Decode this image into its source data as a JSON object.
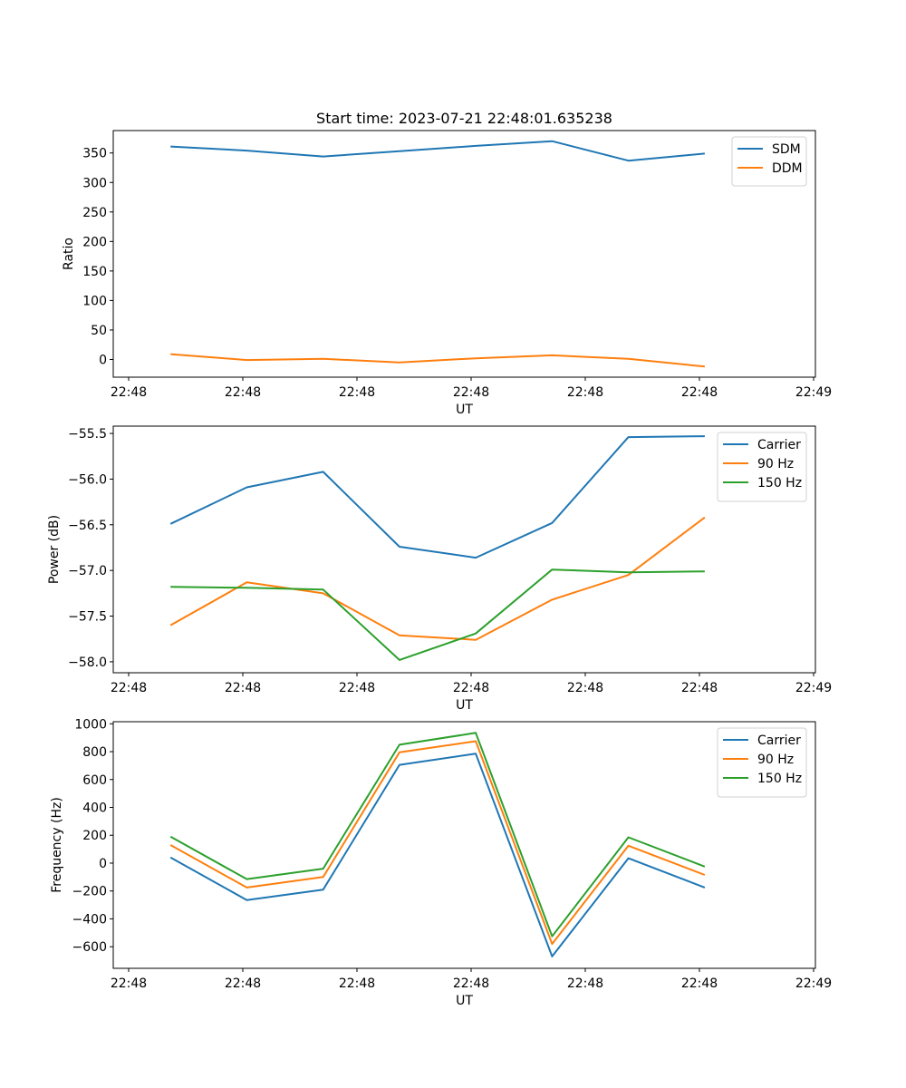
{
  "chart_data": [
    {
      "type": "line",
      "title": "Start time: 2023-07-21 22:48:01.635238",
      "xlabel": "UT",
      "ylabel": "Ratio",
      "x_ticks": [
        "22:48",
        "22:48",
        "22:48",
        "22:48",
        "22:48",
        "22:48",
        "22:48"
      ],
      "x_tick_last": "22:49",
      "yticks": [
        0,
        50,
        100,
        150,
        200,
        250,
        300,
        350
      ],
      "yticklabels": [
        "0",
        "50",
        "100",
        "150",
        "200",
        "250",
        "300",
        "350"
      ],
      "ylim": [
        -30,
        388
      ],
      "x": [
        0,
        1,
        2,
        3,
        4,
        5,
        6,
        7
      ],
      "xlim": [
        -0.75,
        8.45
      ],
      "legend": "upper right",
      "series": [
        {
          "name": "SDM",
          "color": "#1f77b4",
          "values": [
            361,
            354,
            344,
            353,
            362,
            370,
            337,
            349
          ]
        },
        {
          "name": "DDM",
          "color": "#ff7f0e",
          "values": [
            9,
            -1,
            1,
            -5,
            2,
            7,
            1,
            -12
          ]
        }
      ]
    },
    {
      "type": "line",
      "title": "",
      "xlabel": "UT",
      "ylabel": "Power (dB)",
      "x_ticks": [
        "22:48",
        "22:48",
        "22:48",
        "22:48",
        "22:48",
        "22:48",
        "22:48"
      ],
      "x_tick_last": "22:49",
      "yticks": [
        -58.0,
        -57.5,
        -57.0,
        -56.5,
        -56.0,
        -55.5
      ],
      "yticklabels": [
        "−58.0",
        "−57.5",
        "−57.0",
        "−56.5",
        "−56.0",
        "−55.5"
      ],
      "ylim": [
        -58.12,
        -55.42
      ],
      "x": [
        0,
        1,
        2,
        3,
        4,
        5,
        6,
        7
      ],
      "xlim": [
        -0.75,
        8.45
      ],
      "legend": "upper right",
      "series": [
        {
          "name": "Carrier",
          "color": "#1f77b4",
          "values": [
            -56.49,
            -56.09,
            -55.92,
            -56.74,
            -56.86,
            -56.48,
            -55.54,
            -55.53
          ]
        },
        {
          "name": "90 Hz",
          "color": "#ff7f0e",
          "values": [
            -57.6,
            -57.13,
            -57.25,
            -57.71,
            -57.76,
            -57.32,
            -57.05,
            -56.42
          ]
        },
        {
          "name": "150 Hz",
          "color": "#2ca02c",
          "values": [
            -57.18,
            -57.19,
            -57.21,
            -57.98,
            -57.69,
            -56.99,
            -57.02,
            -57.01
          ]
        }
      ]
    },
    {
      "type": "line",
      "title": "",
      "xlabel": "UT",
      "ylabel": "Frequency (Hz)",
      "x_ticks": [
        "22:48",
        "22:48",
        "22:48",
        "22:48",
        "22:48",
        "22:48",
        "22:48"
      ],
      "x_tick_last": "22:49",
      "yticks": [
        -600,
        -400,
        -200,
        0,
        200,
        400,
        600,
        800,
        1000
      ],
      "yticklabels": [
        "−600",
        "−400",
        "−200",
        "0",
        "200",
        "400",
        "600",
        "800",
        "1000"
      ],
      "ylim": [
        -755,
        1015
      ],
      "x": [
        0,
        1,
        2,
        3,
        4,
        5,
        6,
        7
      ],
      "xlim": [
        -0.75,
        8.45
      ],
      "legend": "upper right",
      "series": [
        {
          "name": "Carrier",
          "color": "#1f77b4",
          "values": [
            40,
            -265,
            -190,
            705,
            785,
            -670,
            35,
            -175
          ]
        },
        {
          "name": "90 Hz",
          "color": "#ff7f0e",
          "values": [
            130,
            -175,
            -100,
            795,
            875,
            -580,
            125,
            -85
          ]
        },
        {
          "name": "150 Hz",
          "color": "#2ca02c",
          "values": [
            190,
            -115,
            -40,
            850,
            935,
            -525,
            185,
            -25
          ]
        }
      ]
    }
  ]
}
